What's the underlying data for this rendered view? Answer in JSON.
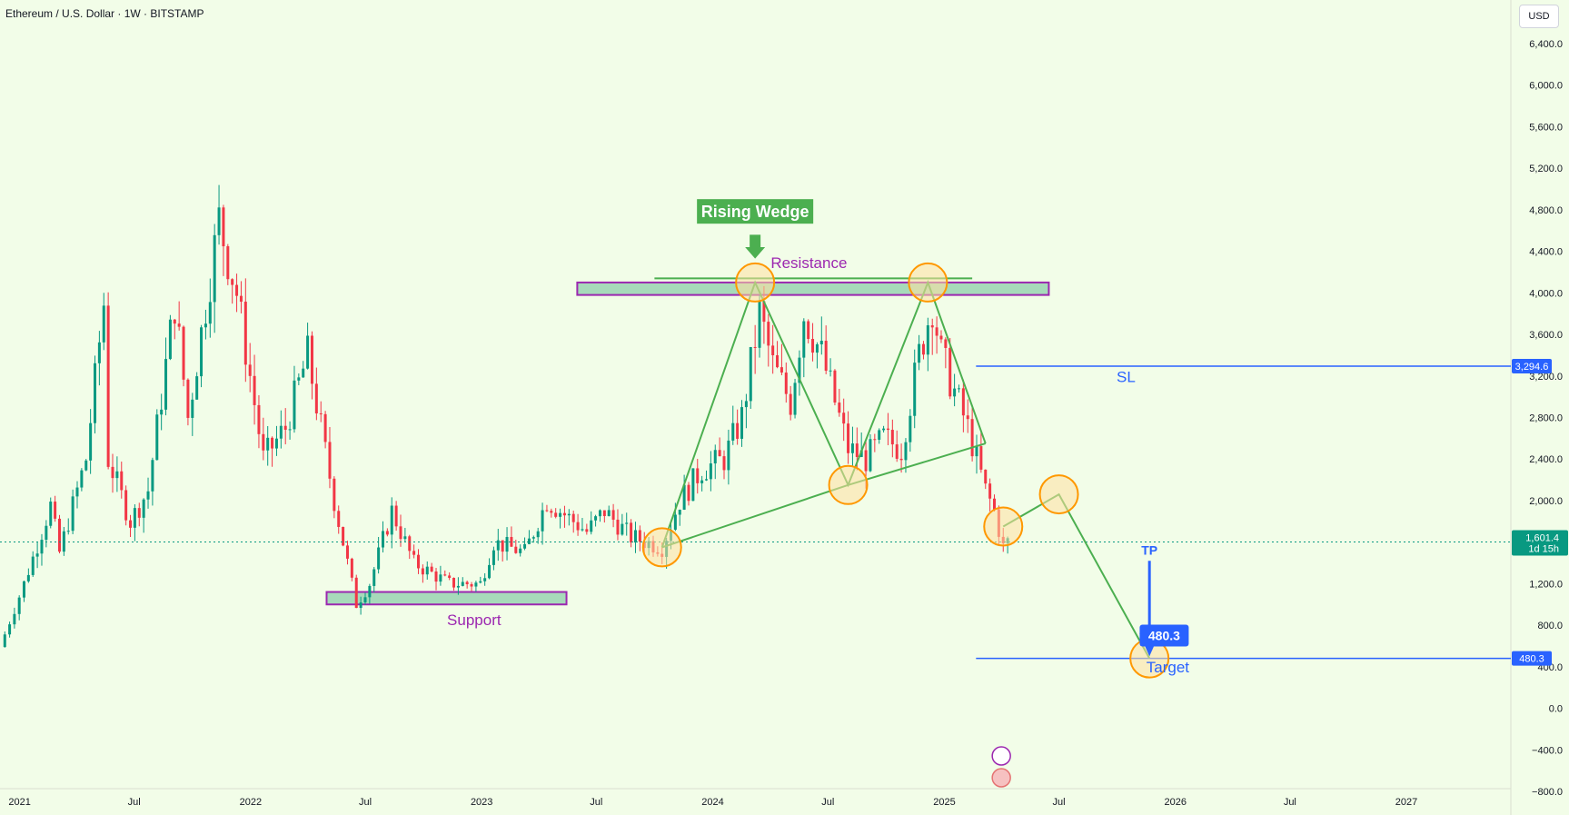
{
  "header": {
    "title": "Ethereum / U.S. Dollar · 1W · BITSTAMP",
    "currency": "USD"
  },
  "colors": {
    "bg": "#f2fde8",
    "up": "#089981",
    "down": "#f23645",
    "pattern": "#4caf50",
    "level": "#2962ff",
    "zone": "#9c27b0",
    "marker": "#ff9800"
  },
  "chart_data": {
    "type": "candlestick",
    "symbol": "ETH/USD",
    "interval": "1W",
    "ylim": [
      -800,
      6800
    ],
    "y_ticks": [
      -800,
      -400,
      0,
      400,
      800,
      1200,
      1600,
      2000,
      2400,
      2800,
      3200,
      3600,
      4000,
      4400,
      4800,
      5200,
      5600,
      6000,
      6400
    ],
    "y_tick_labels": [
      "−800.0",
      "−400.0",
      "0.0",
      "400.0",
      "800.0",
      "1,200.0",
      "1,600.0",
      "2,000.0",
      "2,400.0",
      "2,800.0",
      "3,200.0",
      "3,600.0",
      "4,000.0",
      "4,400.0",
      "4,800.0",
      "5,200.0",
      "5,600.0",
      "6,000.0",
      "6,400.0"
    ],
    "x_ticks": [
      {
        "date": "2021-01-01",
        "label": "2021"
      },
      {
        "date": "2021-07-01",
        "label": "Jul"
      },
      {
        "date": "2022-01-01",
        "label": "2022"
      },
      {
        "date": "2022-07-01",
        "label": "Jul"
      },
      {
        "date": "2023-01-01",
        "label": "2023"
      },
      {
        "date": "2023-07-01",
        "label": "Jul"
      },
      {
        "date": "2024-01-01",
        "label": "2024"
      },
      {
        "date": "2024-07-01",
        "label": "Jul"
      },
      {
        "date": "2025-01-01",
        "label": "2025"
      },
      {
        "date": "2025-07-01",
        "label": "Jul"
      },
      {
        "date": "2026-01-01",
        "label": "2026"
      },
      {
        "date": "2026-07-01",
        "label": "Jul"
      },
      {
        "date": "2027-01-01",
        "label": "2027"
      }
    ],
    "x_range": [
      "2020-12-01",
      "2027-06-15"
    ],
    "price_path": [
      [
        "2020-12-01",
        590
      ],
      [
        "2021-01-08",
        1200
      ],
      [
        "2021-02-19",
        1950
      ],
      [
        "2021-03-05",
        1500
      ],
      [
        "2021-04-16",
        2400
      ],
      [
        "2021-05-14",
        3900
      ],
      [
        "2021-05-21",
        2400
      ],
      [
        "2021-06-25",
        1800
      ],
      [
        "2021-07-23",
        2100
      ],
      [
        "2021-09-03",
        3900
      ],
      [
        "2021-09-24",
        2800
      ],
      [
        "2021-11-12",
        4700
      ],
      [
        "2021-12-10",
        4000
      ],
      [
        "2022-01-21",
        2400
      ],
      [
        "2022-02-25",
        2700
      ],
      [
        "2022-04-01",
        3400
      ],
      [
        "2022-05-13",
        2000
      ],
      [
        "2022-06-17",
        1000
      ],
      [
        "2022-07-08",
        1200
      ],
      [
        "2022-08-12",
        1900
      ],
      [
        "2022-09-16",
        1400
      ],
      [
        "2022-11-11",
        1200
      ],
      [
        "2022-12-30",
        1200
      ],
      [
        "2023-01-20",
        1600
      ],
      [
        "2023-03-10",
        1500
      ],
      [
        "2023-04-14",
        2000
      ],
      [
        "2023-06-16",
        1700
      ],
      [
        "2023-07-14",
        1900
      ],
      [
        "2023-08-25",
        1650
      ],
      [
        "2023-10-13",
        1550
      ],
      [
        "2023-11-10",
        2000
      ],
      [
        "2023-12-15",
        2300
      ],
      [
        "2024-01-19",
        2400
      ],
      [
        "2024-02-16",
        2800
      ],
      [
        "2024-03-15",
        3800
      ],
      [
        "2024-04-05",
        3300
      ],
      [
        "2024-05-03",
        2950
      ],
      [
        "2024-05-24",
        3800
      ],
      [
        "2024-06-21",
        3400
      ],
      [
        "2024-08-02",
        2500
      ],
      [
        "2024-08-30",
        2400
      ],
      [
        "2024-09-27",
        2600
      ],
      [
        "2024-10-25",
        2500
      ],
      [
        "2024-11-22",
        3400
      ],
      [
        "2024-12-13",
        3900
      ],
      [
        "2024-12-27",
        3400
      ],
      [
        "2025-02-07",
        2700
      ],
      [
        "2025-03-07",
        2100
      ],
      [
        "2025-03-21",
        1900
      ],
      [
        "2025-04-04",
        1550
      ],
      [
        "2025-04-11",
        1601.4
      ]
    ],
    "last_price": {
      "value": 1601.4,
      "label": "1,601.4",
      "countdown": "1d 15h"
    },
    "zones": [
      {
        "name": "Resistance",
        "date_from": "2023-06-01",
        "date_to": "2025-06-15",
        "price_low": 3980,
        "price_high": 4100
      },
      {
        "name": "Support",
        "date_from": "2022-05-01",
        "date_to": "2023-05-15",
        "price_low": 1000,
        "price_high": 1120
      }
    ],
    "levels": [
      {
        "name": "SL",
        "value": 3294.6,
        "label": "3,294.6",
        "date_from": "2025-02-20"
      },
      {
        "name": "Target",
        "value": 480.3,
        "label": "480.3",
        "date_from": "2025-02-20"
      }
    ],
    "pattern": {
      "name": "Rising Wedge",
      "lines": [
        [
          [
            "2023-10-13",
            1550
          ],
          [
            "2024-03-08",
            4100
          ],
          [
            "2024-08-02",
            2150
          ],
          [
            "2024-12-06",
            4100
          ],
          [
            "2025-03-07",
            2550
          ]
        ],
        [
          [
            "2023-10-13",
            1550
          ],
          [
            "2024-08-02",
            2150
          ],
          [
            "2025-03-07",
            2550
          ]
        ],
        [
          [
            "2023-10-01",
            4140
          ],
          [
            "2025-02-14",
            4140
          ]
        ]
      ],
      "projection": [
        [
          "2025-04-04",
          1750
        ],
        [
          "2025-07-01",
          2060
        ],
        [
          "2025-11-21",
          480.3
        ]
      ],
      "markers": [
        [
          "2023-10-13",
          1550
        ],
        [
          "2024-03-08",
          4100
        ],
        [
          "2024-08-02",
          2150
        ],
        [
          "2024-12-06",
          4100
        ],
        [
          "2025-04-04",
          1750
        ],
        [
          "2025-07-01",
          2060
        ],
        [
          "2025-11-21",
          480.3
        ]
      ]
    },
    "annotations": [
      {
        "text": "Rising Wedge",
        "date": "2024-03-08",
        "price": 4780,
        "style": "green-box"
      },
      {
        "text": "Resistance",
        "date": "2024-06-01",
        "price": 4240,
        "style": "purple-text"
      },
      {
        "text": "Support",
        "date": "2022-12-20",
        "price": 800,
        "style": "purple-text"
      },
      {
        "text": "SL",
        "date": "2025-10-15",
        "price": 3140,
        "style": "blue-text"
      },
      {
        "text": "Target",
        "date": "2025-12-20",
        "price": 345,
        "style": "blue-text"
      },
      {
        "text": "TP",
        "date": "2025-11-21",
        "price": 1480,
        "style": "blue-text"
      },
      {
        "text": "480.3",
        "date": "2025-12-10",
        "price": 700,
        "style": "blue-box"
      }
    ]
  }
}
